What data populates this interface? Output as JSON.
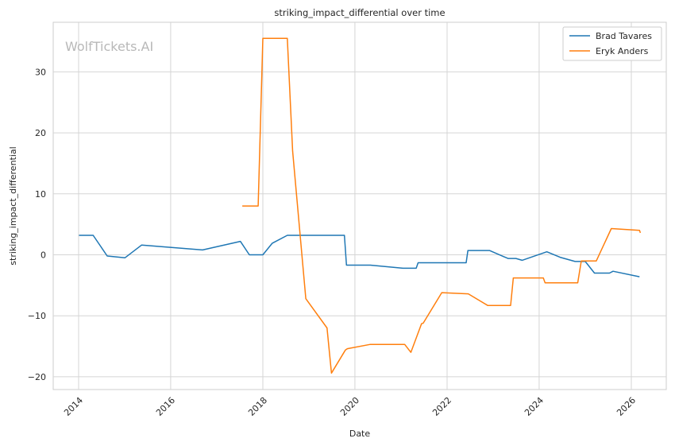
{
  "chart_data": {
    "type": "line",
    "title": "striking_impact_differential over time",
    "xlabel": "Date",
    "ylabel": "striking_impact_differential",
    "watermark": "WolfTickets.AI",
    "x_ticks": [
      "2014",
      "2016",
      "2018",
      "2020",
      "2022",
      "2024",
      "2026"
    ],
    "y_ticks": [
      "−20",
      "−10",
      "0",
      "10",
      "20",
      "30"
    ],
    "grid": true,
    "legend_position": "top-right",
    "series": [
      {
        "name": "Brad Tavares",
        "color": "#1f77b4",
        "x": [
          "2014-01-04",
          "2014-04-26",
          "2014-08-16",
          "2015-01-03",
          "2015-05-16",
          "2016-09-10",
          "2017-07-07",
          "2017-09-16",
          "2018-01-01",
          "2018-03-17",
          "2018-07-14",
          "2019-10-10",
          "2019-10-26",
          "2020-05-02",
          "2021-01-16",
          "2021-05-01",
          "2021-05-16",
          "2022-06-01",
          "2022-06-15",
          "2022-12-03",
          "2023-04-29",
          "2023-07-01",
          "2023-08-19",
          "2024-03-02",
          "2024-06-15",
          "2024-10-12",
          "2025-01-01",
          "2025-03-15",
          "2025-07-12",
          "2025-08-09",
          "2026-03-07"
        ],
        "y": [
          3.2,
          3.2,
          -0.2,
          -0.5,
          1.6,
          0.8,
          2.2,
          0.0,
          0.0,
          1.9,
          3.2,
          3.2,
          -1.7,
          -1.7,
          -2.2,
          -2.2,
          -1.3,
          -1.3,
          0.7,
          0.7,
          -0.6,
          -0.6,
          -0.9,
          0.5,
          -0.4,
          -1.1,
          -1.1,
          -3.0,
          -3.0,
          -2.7,
          -3.6
        ]
      },
      {
        "name": "Eryk Anders",
        "color": "#ff7f0e",
        "x": [
          "2017-07-22",
          "2017-11-25",
          "2018-01-01",
          "2018-02-03",
          "2018-07-14",
          "2018-08-25",
          "2018-12-08",
          "2019-05-25",
          "2019-06-29",
          "2019-10-18",
          "2019-11-02",
          "2020-05-02",
          "2021-01-30",
          "2021-03-20",
          "2021-06-12",
          "2021-06-26",
          "2021-11-20",
          "2022-06-18",
          "2022-11-19",
          "2023-05-20",
          "2023-06-10",
          "2024-02-03",
          "2024-02-17",
          "2024-11-02",
          "2024-11-30",
          "2025-03-29",
          "2025-07-26",
          "2026-03-07",
          "2026-03-14"
        ],
        "y": [
          8.0,
          8.0,
          35.5,
          35.5,
          35.5,
          17.0,
          -7.2,
          -12.0,
          -19.4,
          -15.6,
          -15.4,
          -14.7,
          -14.7,
          -16.0,
          -11.3,
          -11.2,
          -6.2,
          -6.4,
          -8.3,
          -8.3,
          -3.8,
          -3.8,
          -4.6,
          -4.6,
          -1.0,
          -1.0,
          4.3,
          4.0,
          3.6
        ]
      }
    ]
  }
}
